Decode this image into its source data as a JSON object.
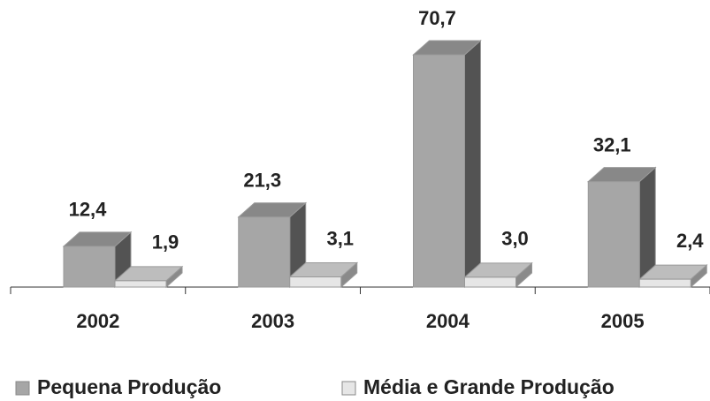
{
  "chart_data": {
    "type": "bar3d",
    "categories": [
      "2002",
      "2003",
      "2004",
      "2005"
    ],
    "series": [
      {
        "name": "Pequena Produção",
        "color": "#a6a6a6",
        "values": [
          12.4,
          21.3,
          70.7,
          32.1
        ],
        "value_labels": [
          "12,4",
          "21,3",
          "70,7",
          "32,1"
        ]
      },
      {
        "name": "Média e Grande Produção",
        "color": "#e6e6e6",
        "values": [
          1.9,
          3.1,
          3.0,
          2.4
        ],
        "value_labels": [
          "1,9",
          "3,1",
          "3,0",
          "2,4"
        ]
      }
    ]
  }
}
